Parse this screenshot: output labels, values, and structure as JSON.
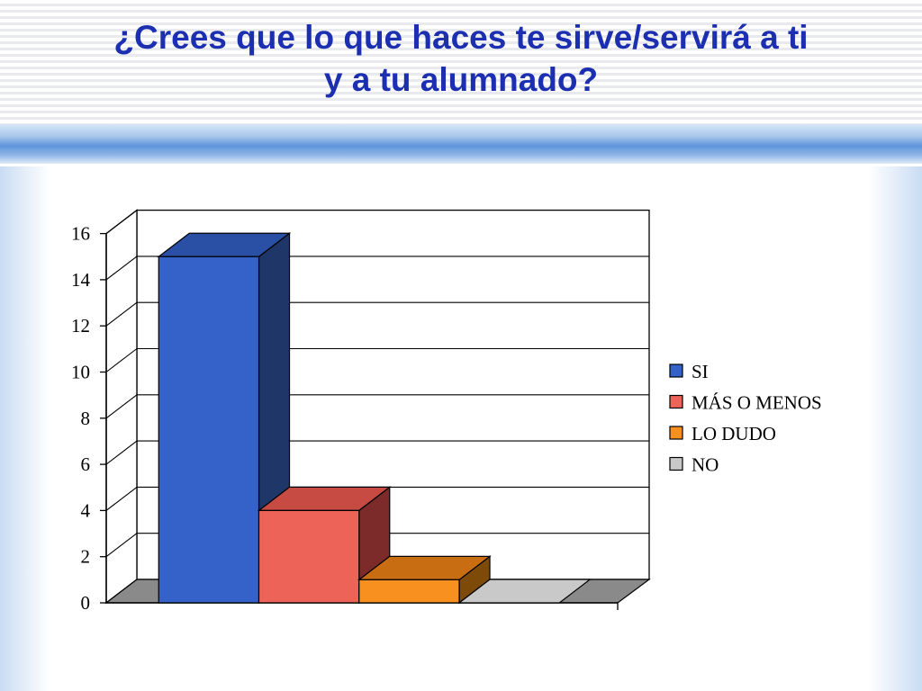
{
  "slide": {
    "title_line1": "¿Crees que lo que haces te sirve/servirá a ti",
    "title_line2": "y a tu alumnado?"
  },
  "chart_data": {
    "type": "bar",
    "style": "3d",
    "title": "",
    "xlabel": "",
    "ylabel": "",
    "ylim": [
      0,
      16
    ],
    "yticks": [
      "0",
      "2",
      "4",
      "6",
      "8",
      "10",
      "12",
      "14",
      "16"
    ],
    "grid": true,
    "legend_position": "right",
    "series": [
      {
        "name": "SI",
        "value": 15,
        "color": "#3462c8",
        "top_color": "#2a50a6",
        "side_color": "#1e3768"
      },
      {
        "name": "MÁS O MENOS",
        "value": 4,
        "color": "#ee6358",
        "top_color": "#c74b42",
        "side_color": "#7d2a2a"
      },
      {
        "name": "LO DUDO",
        "value": 1,
        "color": "#f7901e",
        "top_color": "#c86d12",
        "side_color": "#7e4a08"
      },
      {
        "name": "NO",
        "value": 0,
        "color": "#c9c9c9",
        "top_color": "#a0a0a0",
        "side_color": "#6f6f6f"
      }
    ],
    "floor_color": "#8a8a8a"
  }
}
